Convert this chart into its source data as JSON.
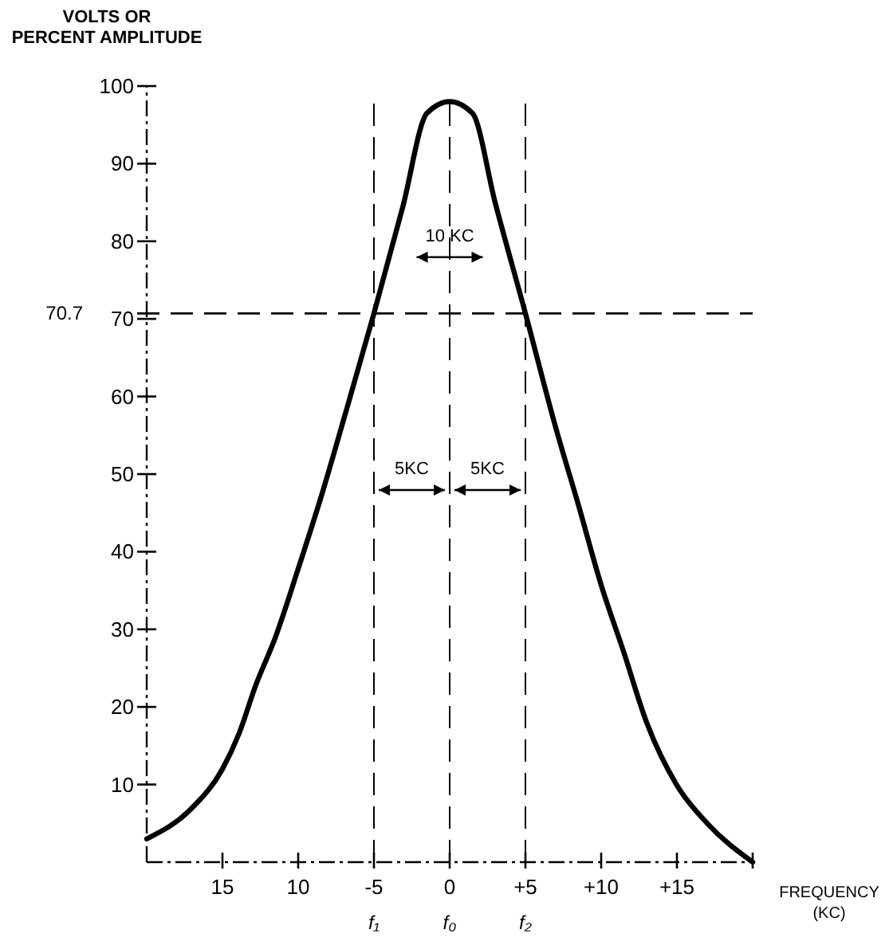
{
  "chart_data": {
    "type": "line",
    "ylabel": "VOLTS OR\nPERCENT AMPLITUDE",
    "xlabel": "FREQUENCY\n(KC)",
    "xlim": [
      -20,
      20
    ],
    "ylim": [
      0,
      100
    ],
    "xticks": [
      {
        "value": -15,
        "label": "15"
      },
      {
        "value": -10,
        "label": "10"
      },
      -5,
      0,
      {
        "value": 5,
        "label": "+5"
      },
      {
        "value": 10,
        "label": "+10"
      },
      {
        "value": 15,
        "label": "+15"
      }
    ],
    "yticks": [
      10,
      20,
      30,
      40,
      50,
      60,
      70,
      80,
      90,
      100
    ],
    "series": [
      {
        "color": "#000000",
        "x": [
          -20,
          -17,
          -15,
          -13.9,
          -12.8,
          -11.5,
          -10,
          -8.5,
          -6.9,
          -5,
          -3.1,
          -1.5,
          0,
          1.5,
          3,
          5,
          7,
          8.5,
          10,
          11.5,
          13,
          15,
          17,
          20
        ],
        "values": [
          3,
          7,
          12,
          16.6,
          22.8,
          29,
          37.8,
          47,
          57.7,
          70.7,
          84.4,
          96.5,
          98,
          96.5,
          85,
          70.7,
          56,
          46,
          35.7,
          27,
          18,
          9.9,
          5,
          0
        ]
      }
    ],
    "ref_lines": [
      {
        "axis": "y",
        "value": 70.7,
        "label": "70.7",
        "line_style": "dashed"
      },
      {
        "axis": "x",
        "value": -5,
        "label": "f₁",
        "line_style": "dashed"
      },
      {
        "axis": "x",
        "value": 0,
        "label": "f₀",
        "line_style": "dashed"
      },
      {
        "axis": "x",
        "value": 5,
        "label": "f₂",
        "line_style": "dashed"
      }
    ],
    "annotations": [
      {
        "text": "10 KC",
        "x": 0,
        "y": 80
      },
      "5KC",
      "5KC"
    ],
    "grid": false,
    "marker": "none",
    "line_style": "solid"
  }
}
